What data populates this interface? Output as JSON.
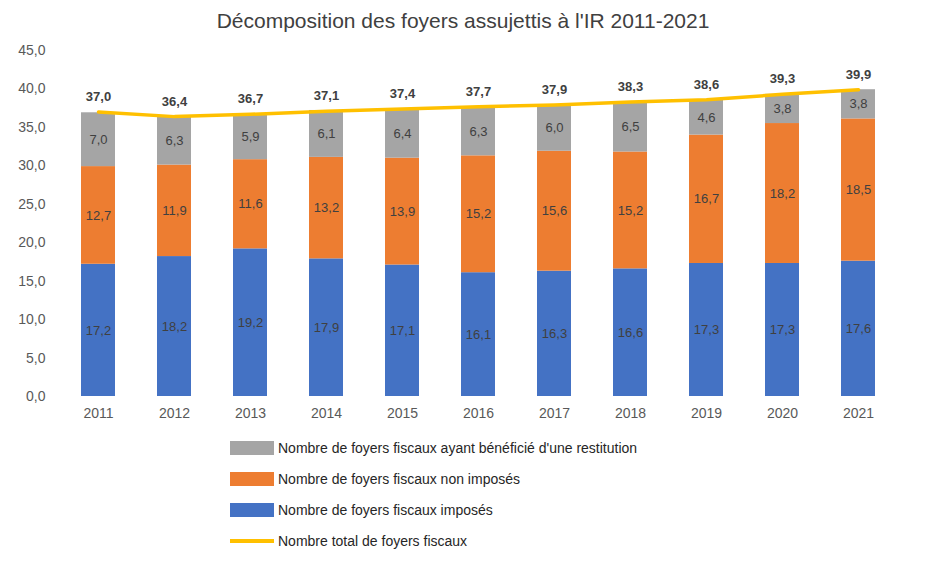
{
  "chart_data": {
    "type": "bar",
    "title": "Décomposition des foyers assujettis à l'IR 2011-2021",
    "categories": [
      "2011",
      "2012",
      "2013",
      "2014",
      "2015",
      "2016",
      "2017",
      "2018",
      "2019",
      "2020",
      "2021"
    ],
    "stacked": true,
    "data_labels": true,
    "grid": false,
    "legend": "bottom",
    "ylim": [
      0,
      45
    ],
    "yticks": [
      {
        "value": 0,
        "label": "0,0"
      },
      {
        "value": 5,
        "label": "5,0"
      },
      {
        "value": 10,
        "label": "10,0"
      },
      {
        "value": 15,
        "label": "15,0"
      },
      {
        "value": 20,
        "label": "20,0"
      },
      {
        "value": 25,
        "label": "25,0"
      },
      {
        "value": 30,
        "label": "30,0"
      },
      {
        "value": 35,
        "label": "35,0"
      },
      {
        "value": 40,
        "label": "40,0"
      },
      {
        "value": 45,
        "label": "45,0"
      }
    ],
    "series": [
      {
        "name": "Nombre de foyers fiscaux ayant bénéficié d'une restitution",
        "type": "bar",
        "color": "#a5a5a5",
        "values": [
          7.0,
          6.3,
          5.9,
          6.1,
          6.4,
          6.3,
          6.0,
          6.5,
          4.6,
          3.8,
          3.8
        ],
        "value_labels": [
          "7,0",
          "6,3",
          "5,9",
          "6,1",
          "6,4",
          "6,3",
          "6,0",
          "6,5",
          "4,6",
          "3,8",
          "3,8"
        ]
      },
      {
        "name": "Nombre de foyers fiscaux non imposés",
        "type": "bar",
        "color": "#ed7d31",
        "values": [
          12.7,
          11.9,
          11.6,
          13.2,
          13.9,
          15.2,
          15.6,
          15.2,
          16.7,
          18.2,
          18.5
        ],
        "value_labels": [
          "12,7",
          "11,9",
          "11,6",
          "13,2",
          "13,9",
          "15,2",
          "15,6",
          "15,2",
          "16,7",
          "18,2",
          "18,5"
        ]
      },
      {
        "name": "Nombre de foyers fiscaux imposés",
        "type": "bar",
        "color": "#4472c4",
        "values": [
          17.2,
          18.2,
          19.2,
          17.9,
          17.1,
          16.1,
          16.3,
          16.6,
          17.3,
          17.3,
          17.6
        ],
        "value_labels": [
          "17,2",
          "18,2",
          "19,2",
          "17,9",
          "17,1",
          "16,1",
          "16,3",
          "16,6",
          "17,3",
          "17,3",
          "17,6"
        ]
      },
      {
        "name": "Nombre total de foyers fiscaux",
        "type": "line",
        "color": "#ffc000",
        "values": [
          37.0,
          36.4,
          36.7,
          37.1,
          37.4,
          37.7,
          37.9,
          38.3,
          38.6,
          39.3,
          39.9
        ],
        "value_labels": [
          "37,0",
          "36,4",
          "36,7",
          "37,1",
          "37,4",
          "37,7",
          "37,9",
          "38,3",
          "38,6",
          "39,3",
          "39,9"
        ]
      }
    ]
  }
}
